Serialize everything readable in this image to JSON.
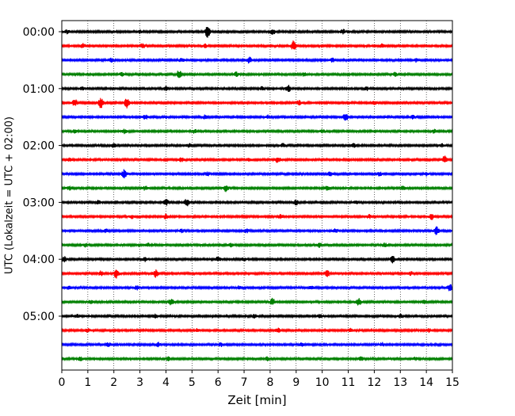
{
  "chart_data": {
    "type": "line",
    "xlabel": "Zeit  [min]",
    "ylabel": "UTC (Lokalzeit = UTC + 02:00)",
    "xlim": [
      0,
      15
    ],
    "x_ticks": [
      0,
      1,
      2,
      3,
      4,
      5,
      6,
      7,
      8,
      9,
      10,
      11,
      12,
      13,
      14,
      15
    ],
    "y_tick_labels": [
      "00:00",
      "01:00",
      "02:00",
      "03:00",
      "04:00",
      "05:00"
    ],
    "rows_per_hour": 4,
    "trace_minutes": 15,
    "row_count": 24,
    "grid_x": true,
    "color_cycle": [
      "#000000",
      "#ff0000",
      "#0000ff",
      "#008000"
    ],
    "bursts": [
      [
        [
          0.2,
          0.3
        ],
        [
          5.6,
          1.0
        ],
        [
          8.1,
          0.45
        ],
        [
          10.8,
          0.4
        ],
        [
          3.0,
          0.3
        ]
      ],
      [
        [
          0.8,
          0.45
        ],
        [
          3.1,
          0.5
        ],
        [
          8.9,
          0.85
        ],
        [
          5.5,
          0.3
        ],
        [
          12.3,
          0.3
        ]
      ],
      [
        [
          1.9,
          0.3
        ],
        [
          4.6,
          0.35
        ],
        [
          7.2,
          0.6
        ],
        [
          10.4,
          0.3
        ],
        [
          13.6,
          0.3
        ]
      ],
      [
        [
          2.3,
          0.3
        ],
        [
          4.5,
          0.7
        ],
        [
          6.7,
          0.35
        ],
        [
          9.3,
          0.3
        ],
        [
          12.8,
          0.3
        ]
      ],
      [
        [
          0.8,
          0.3
        ],
        [
          4.0,
          0.35
        ],
        [
          7.7,
          0.3
        ],
        [
          8.7,
          0.6
        ],
        [
          11.7,
          0.3
        ]
      ],
      [
        [
          0.5,
          0.6
        ],
        [
          1.5,
          1.0
        ],
        [
          2.5,
          0.85
        ],
        [
          9.1,
          0.45
        ],
        [
          12.0,
          0.3
        ]
      ],
      [
        [
          3.2,
          0.45
        ],
        [
          5.5,
          0.3
        ],
        [
          10.9,
          0.7
        ],
        [
          13.5,
          0.3
        ],
        [
          7.9,
          0.3
        ]
      ],
      [
        [
          0.5,
          0.3
        ],
        [
          2.4,
          0.35
        ],
        [
          5.1,
          0.3
        ],
        [
          10.0,
          0.35
        ],
        [
          14.3,
          0.3
        ]
      ],
      [
        [
          2.0,
          0.3
        ],
        [
          4.9,
          0.3
        ],
        [
          8.5,
          0.3
        ],
        [
          11.2,
          0.3
        ],
        [
          14.6,
          0.3
        ]
      ],
      [
        [
          0.3,
          0.3
        ],
        [
          4.6,
          0.35
        ],
        [
          7.2,
          0.3
        ],
        [
          8.3,
          0.5
        ],
        [
          14.7,
          0.6
        ]
      ],
      [
        [
          2.4,
          0.75
        ],
        [
          5.6,
          0.3
        ],
        [
          10.3,
          0.4
        ],
        [
          12.2,
          0.3
        ],
        [
          14.0,
          0.35
        ]
      ],
      [
        [
          0.3,
          0.3
        ],
        [
          3.2,
          0.35
        ],
        [
          6.3,
          0.55
        ],
        [
          10.2,
          0.35
        ],
        [
          13.1,
          0.3
        ]
      ],
      [
        [
          1.4,
          0.3
        ],
        [
          4.0,
          0.55
        ],
        [
          4.8,
          0.6
        ],
        [
          9.0,
          0.4
        ],
        [
          11.3,
          0.3
        ]
      ],
      [
        [
          2.7,
          0.3
        ],
        [
          4.0,
          0.4
        ],
        [
          8.4,
          0.3
        ],
        [
          11.8,
          0.3
        ],
        [
          14.2,
          0.5
        ]
      ],
      [
        [
          1.7,
          0.3
        ],
        [
          4.6,
          0.35
        ],
        [
          7.1,
          0.3
        ],
        [
          10.5,
          0.35
        ],
        [
          14.4,
          0.7
        ]
      ],
      [
        [
          0.9,
          0.3
        ],
        [
          3.3,
          0.3
        ],
        [
          6.5,
          0.3
        ],
        [
          9.9,
          0.35
        ],
        [
          12.4,
          0.3
        ]
      ],
      [
        [
          0.1,
          0.45
        ],
        [
          3.2,
          0.35
        ],
        [
          6.0,
          0.4
        ],
        [
          7.0,
          0.3
        ],
        [
          12.7,
          0.65
        ]
      ],
      [
        [
          1.5,
          0.4
        ],
        [
          2.1,
          0.85
        ],
        [
          3.6,
          0.65
        ],
        [
          10.2,
          0.5
        ],
        [
          13.4,
          0.3
        ]
      ],
      [
        [
          0.3,
          0.3
        ],
        [
          2.9,
          0.35
        ],
        [
          6.8,
          0.3
        ],
        [
          9.6,
          0.3
        ],
        [
          14.9,
          0.6
        ]
      ],
      [
        [
          1.1,
          0.3
        ],
        [
          4.2,
          0.55
        ],
        [
          8.1,
          0.6
        ],
        [
          11.4,
          0.6
        ],
        [
          13.9,
          0.3
        ]
      ],
      [
        [
          0.6,
          0.3
        ],
        [
          3.6,
          0.35
        ],
        [
          7.4,
          0.3
        ],
        [
          9.9,
          0.3
        ],
        [
          13.0,
          0.3
        ]
      ],
      [
        [
          1.0,
          0.3
        ],
        [
          5.2,
          0.3
        ],
        [
          8.3,
          0.35
        ],
        [
          11.1,
          0.35
        ],
        [
          14.1,
          0.3
        ]
      ],
      [
        [
          1.8,
          0.3
        ],
        [
          3.7,
          0.35
        ],
        [
          9.2,
          0.3
        ],
        [
          12.3,
          0.3
        ],
        [
          6.1,
          0.3
        ]
      ],
      [
        [
          0.7,
          0.3
        ],
        [
          4.1,
          0.35
        ],
        [
          7.9,
          0.3
        ],
        [
          11.5,
          0.3
        ],
        [
          13.6,
          0.3
        ]
      ]
    ]
  }
}
